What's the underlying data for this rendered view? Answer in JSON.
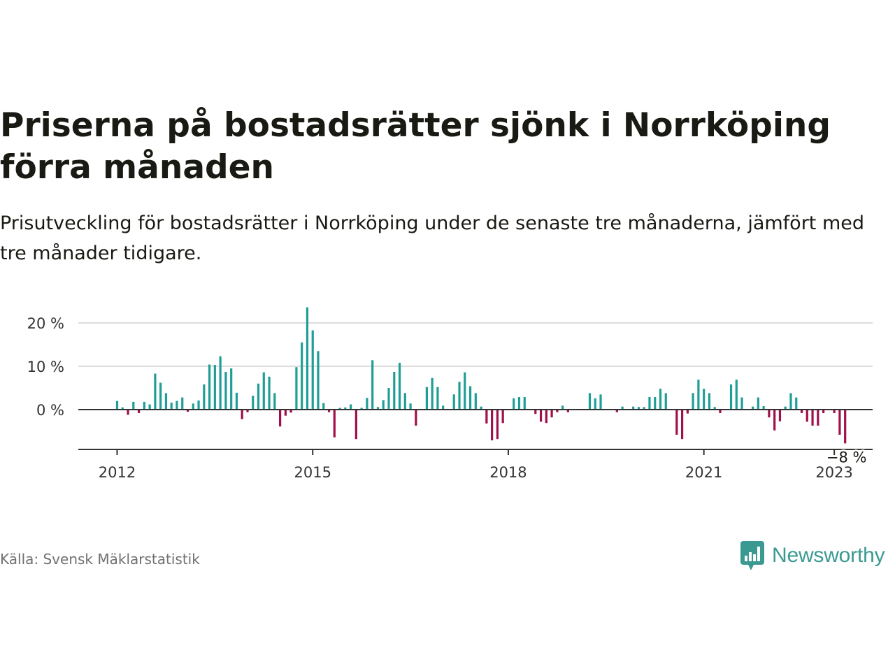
{
  "title": "Priserna på bostadsrätter sjönk i Norrköping förra månaden",
  "subtitle": "Prisutveckling för bostadsrätter i Norrköping under de senaste tre månaderna, jämfört med tre månader tidigare.",
  "source": "Källa: Svensk Mäklarstatistik",
  "brand": "Newsworthy",
  "colors": {
    "positive": "#1f9e96",
    "negative": "#a0104a",
    "grid": "#dddddd",
    "axis": "#333333",
    "brand": "#3a9a92"
  },
  "chart_data": {
    "type": "bar",
    "title": "Priserna på bostadsrätter sjönk i Norrköping förra månaden",
    "xlabel": "",
    "ylabel": "",
    "ylim": [
      -9,
      25
    ],
    "yticks": [
      0,
      10,
      20
    ],
    "ytick_labels": [
      "0 %",
      "10 %",
      "20 %"
    ],
    "xticks": [
      "2012",
      "2015",
      "2018",
      "2021",
      "2023"
    ],
    "grid": true,
    "legend": "none",
    "start": "2012-01",
    "end_label": "−8 %",
    "values": [
      2,
      0.5,
      -1.2,
      1.8,
      -0.8,
      1.8,
      1.2,
      8.3,
      6.2,
      3.8,
      1.6,
      2,
      2.8,
      -0.5,
      1.4,
      2.1,
      5.8,
      10.4,
      10.3,
      12.3,
      8.7,
      9.5,
      3.9,
      -2.2,
      -0.6,
      3.2,
      6,
      8.6,
      7.6,
      3.8,
      -3.9,
      -1.4,
      -0.7,
      9.8,
      15.5,
      23.6,
      18.3,
      13.5,
      1.5,
      -0.6,
      -6.4,
      0.4,
      0.5,
      1.2,
      -6.8,
      0.4,
      2.7,
      11.4,
      0.6,
      2.2,
      5,
      8.7,
      10.8,
      3.8,
      1.4,
      -3.7,
      0,
      5.2,
      7.3,
      5.2,
      0.9,
      0,
      3.5,
      6.4,
      8.6,
      5.4,
      3.8,
      0.7,
      -3.2,
      -7.1,
      -6.8,
      -3.1,
      0,
      2.6,
      2.9,
      2.9,
      0,
      -1,
      -2.8,
      -3.1,
      -1.8,
      -0.6,
      0.9,
      -0.6,
      0,
      0,
      0,
      3.8,
      2.6,
      3.5,
      0,
      0,
      -0.6,
      0.7,
      0,
      0.7,
      0.6,
      0.6,
      2.9,
      2.9,
      4.8,
      3.8,
      0,
      -5.8,
      -6.8,
      -0.9,
      3.8,
      6.9,
      4.8,
      3.8,
      0.6,
      -0.8,
      0,
      5.8,
      6.9,
      2.8,
      0,
      0.7,
      2.8,
      0.8,
      -1.8,
      -4.8,
      -2.7,
      0.7,
      3.8,
      2.8,
      -0.8,
      -2.8,
      -3.7,
      -3.7,
      -0.8,
      0,
      -0.8,
      -5.8,
      -7.8
    ]
  }
}
